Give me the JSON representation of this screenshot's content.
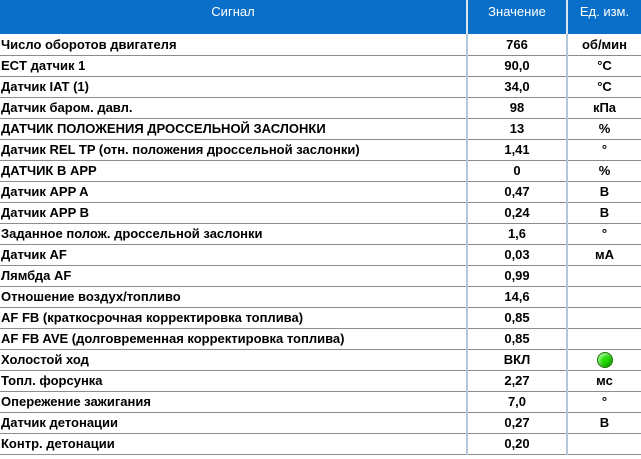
{
  "header": {
    "signal": "Сигнал",
    "value": "Значение",
    "unit": "Ед. изм."
  },
  "colors": {
    "header_bg": "#0a6fc9",
    "status_on": "#22dd00"
  },
  "rows": [
    {
      "name": "Число оборотов двигателя",
      "value": "766",
      "unit": "об/мин"
    },
    {
      "name": "ECT датчик 1",
      "value": "90,0",
      "unit": "°C"
    },
    {
      "name": "Датчик IAT (1)",
      "value": "34,0",
      "unit": "°C"
    },
    {
      "name": "Датчик баром. давл.",
      "value": "98",
      "unit": "кПа"
    },
    {
      "name": "ДАТЧИК ПОЛОЖЕНИЯ ДРОССЕЛЬНОЙ ЗАСЛОНКИ",
      "value": "13",
      "unit": "%"
    },
    {
      "name": "Датчик REL TP (отн. положения дроссельной заслонки)",
      "value": "1,41",
      "unit": "°"
    },
    {
      "name": "ДАТЧИК В APP",
      "value": "0",
      "unit": "%"
    },
    {
      "name": "Датчик APP A",
      "value": "0,47",
      "unit": "В"
    },
    {
      "name": "Датчик APP B",
      "value": "0,24",
      "unit": "В"
    },
    {
      "name": "Заданное полож. дроссельной заслонки",
      "value": "1,6",
      "unit": "°"
    },
    {
      "name": "Датчик AF",
      "value": "0,03",
      "unit": "мА"
    },
    {
      "name": "Лямбда AF",
      "value": "0,99",
      "unit": ""
    },
    {
      "name": "Отношение воздух/топливо",
      "value": "14,6",
      "unit": ""
    },
    {
      "name": "AF FB (краткосрочная корректировка топлива)",
      "value": "0,85",
      "unit": ""
    },
    {
      "name": "AF FB AVE (долговременная корректировка топлива)",
      "value": "0,85",
      "unit": ""
    },
    {
      "name": "Холостой ход",
      "value": "ВКЛ",
      "unit": "",
      "indicator": "green-led-icon"
    },
    {
      "name": "Топл. форсунка",
      "value": "2,27",
      "unit": "мс"
    },
    {
      "name": "Опережение зажигания",
      "value": "7,0",
      "unit": "°"
    },
    {
      "name": "Датчик детонации",
      "value": "0,27",
      "unit": "В"
    },
    {
      "name": "Контр. детонации",
      "value": "0,20",
      "unit": ""
    }
  ]
}
